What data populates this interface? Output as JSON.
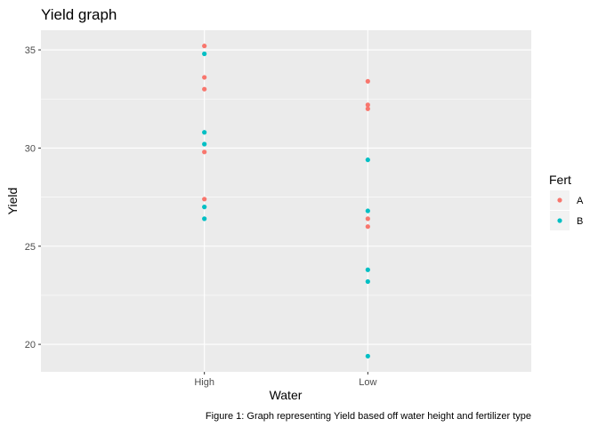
{
  "chart_data": {
    "type": "scatter",
    "title": "Yield graph",
    "xlabel": "Water",
    "ylabel": "Yield",
    "caption": "Figure 1: Graph representing Yield based off water height and fertilizer type",
    "categories": [
      "High",
      "Low"
    ],
    "yticks": [
      20,
      25,
      30,
      35
    ],
    "ylim": [
      18.6,
      36.0
    ],
    "grid": true,
    "legend": {
      "title": "Fert",
      "placement": "right"
    },
    "series": [
      {
        "name": "A",
        "color": "#F8766D",
        "points": [
          {
            "x": "High",
            "y": 35.2
          },
          {
            "x": "High",
            "y": 33.6
          },
          {
            "x": "High",
            "y": 33.0
          },
          {
            "x": "High",
            "y": 29.8
          },
          {
            "x": "High",
            "y": 27.4
          },
          {
            "x": "Low",
            "y": 33.4
          },
          {
            "x": "Low",
            "y": 32.2
          },
          {
            "x": "Low",
            "y": 32.0
          },
          {
            "x": "Low",
            "y": 26.4
          },
          {
            "x": "Low",
            "y": 26.0
          }
        ]
      },
      {
        "name": "B",
        "color": "#00BFC4",
        "points": [
          {
            "x": "High",
            "y": 34.8
          },
          {
            "x": "High",
            "y": 30.8
          },
          {
            "x": "High",
            "y": 30.2
          },
          {
            "x": "High",
            "y": 27.0
          },
          {
            "x": "High",
            "y": 26.4
          },
          {
            "x": "Low",
            "y": 29.4
          },
          {
            "x": "Low",
            "y": 26.8
          },
          {
            "x": "Low",
            "y": 23.8
          },
          {
            "x": "Low",
            "y": 23.2
          },
          {
            "x": "Low",
            "y": 19.4
          }
        ]
      }
    ]
  }
}
